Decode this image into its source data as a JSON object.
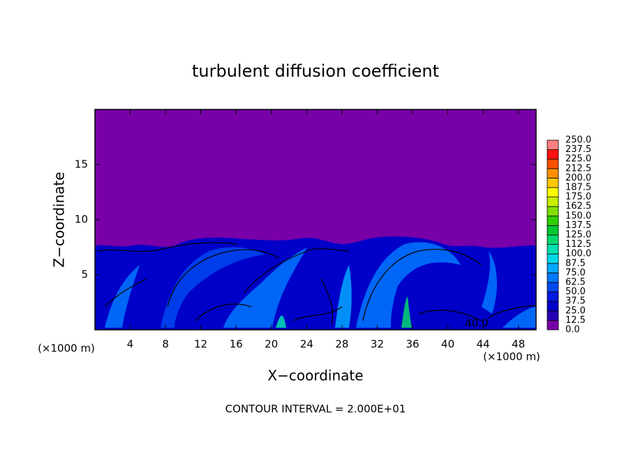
{
  "chart_data": {
    "type": "contour",
    "title": "turbulent diffusion coefficient",
    "x_label": "X−coordinate",
    "y_label": "Z−coordinate",
    "x_unit": "(×1000 m)",
    "annotation": "CONTOUR INTERVAL = 2.000E+01",
    "contour_label": "40.0",
    "xlim": [
      0,
      50
    ],
    "xticks": [
      4,
      8,
      12,
      16,
      20,
      24,
      28,
      32,
      36,
      40,
      44,
      48
    ],
    "ylim": [
      0,
      20
    ],
    "yticks": [
      5,
      10,
      15
    ],
    "colorbar": {
      "levels": [
        {
          "value": 0,
          "label": "0.0"
        },
        {
          "value": 12.5,
          "label": "12.5"
        },
        {
          "value": 25,
          "label": "25.0"
        },
        {
          "value": 37.5,
          "label": "37.5"
        },
        {
          "value": 50,
          "label": "50.0"
        },
        {
          "value": 62.5,
          "label": "62.5"
        },
        {
          "value": 75,
          "label": "75.0"
        },
        {
          "value": 87.5,
          "label": "87.5"
        },
        {
          "value": 100,
          "label": "100.0"
        },
        {
          "value": 112.5,
          "label": "112.5"
        },
        {
          "value": 125,
          "label": "125.0"
        },
        {
          "value": 137.5,
          "label": "137.5"
        },
        {
          "value": 150,
          "label": "150.0"
        },
        {
          "value": 162.5,
          "label": "162.5"
        },
        {
          "value": 175,
          "label": "175.0"
        },
        {
          "value": 187.5,
          "label": "187.5"
        },
        {
          "value": 200,
          "label": "200.0"
        },
        {
          "value": 212.5,
          "label": "212.5"
        },
        {
          "value": 225,
          "label": "225.0"
        },
        {
          "value": 237.5,
          "label": "237.5"
        },
        {
          "value": 250,
          "label": "250.0"
        }
      ],
      "colors": [
        "#7800a8",
        "#2800b4",
        "#0000c8",
        "#0018e0",
        "#0048f0",
        "#0078ff",
        "#00a8ff",
        "#00d8e8",
        "#00e0b0",
        "#00d870",
        "#00c830",
        "#30d000",
        "#80e000",
        "#c8f000",
        "#ffff00",
        "#ffc800",
        "#ff9000",
        "#ff5000",
        "#ff1010",
        "#ff8080"
      ]
    }
  }
}
